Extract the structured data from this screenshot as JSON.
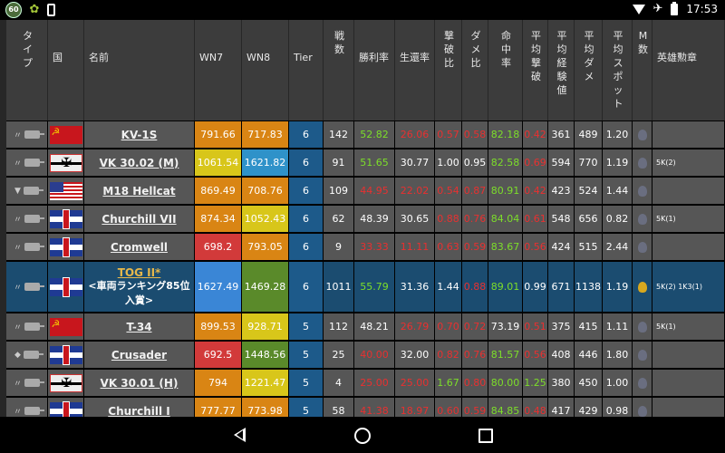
{
  "status_bar": {
    "badge": "60",
    "time": "17:53"
  },
  "header": {
    "type": "タイプ",
    "country": "国",
    "name": "名前",
    "wn7": "WN7",
    "wn8": "WN8",
    "tier": "Tier",
    "battles": "戦数",
    "winrate": "勝利率",
    "survival": "生還率",
    "kill_ratio": "撃破比",
    "damage_ratio": "ダメ比",
    "hit_rate": "命中率",
    "avg_kills": "平均撃破",
    "avg_exp": "平均経験値",
    "avg_damage": "平均ダメ",
    "avg_spot": "平均スポット",
    "m_count": "M数",
    "medals": "英雄勲章"
  },
  "rows": [
    {
      "type": "td",
      "flag": "su",
      "name": "KV-1S",
      "wn7": "791.66",
      "wn7c": "#d98514",
      "wn8": "717.83",
      "wn8c": "#d98514",
      "tier": "6",
      "battles": "142",
      "winrate": "52.82",
      "winc": "green",
      "survival": "26.06",
      "survc": "red",
      "kr": "0.57",
      "krc": "red",
      "dr": "0.58",
      "drc": "red",
      "hit": "82.18",
      "hitc": "green",
      "ak": "0.42",
      "akc": "red",
      "exp": "361",
      "dmg": "489",
      "spot": "1.20",
      "medal": "",
      "gold": false
    },
    {
      "type": "td",
      "flag": "de",
      "name": "VK 30.02 (M)",
      "wn7": "1061.54",
      "wn7c": "#d8c61a",
      "wn8": "1621.82",
      "wn8c": "#2f92c9",
      "tier": "6",
      "battles": "91",
      "winrate": "51.65",
      "winc": "green",
      "survival": "30.77",
      "survc": "white",
      "kr": "1.00",
      "krc": "white",
      "dr": "0.95",
      "drc": "white",
      "hit": "82.58",
      "hitc": "green",
      "ak": "0.69",
      "akc": "red",
      "exp": "594",
      "dmg": "770",
      "spot": "1.19",
      "medal": "5K(2)",
      "gold": false
    },
    {
      "type": "tl",
      "flag": "us",
      "name": "M18 Hellcat",
      "wn7": "869.49",
      "wn7c": "#d98514",
      "wn8": "708.76",
      "wn8c": "#d98514",
      "tier": "6",
      "battles": "109",
      "winrate": "44.95",
      "winc": "red",
      "survival": "22.02",
      "survc": "red",
      "kr": "0.54",
      "krc": "red",
      "dr": "0.87",
      "drc": "red",
      "hit": "80.91",
      "hitc": "green",
      "ak": "0.42",
      "akc": "red",
      "exp": "423",
      "dmg": "524",
      "spot": "1.44",
      "medal": "",
      "gold": false
    },
    {
      "type": "td",
      "flag": "uk",
      "name": "Churchill VII",
      "wn7": "874.34",
      "wn7c": "#d98514",
      "wn8": "1052.43",
      "wn8c": "#d8c61a",
      "tier": "6",
      "battles": "62",
      "winrate": "48.39",
      "winc": "white",
      "survival": "30.65",
      "survc": "white",
      "kr": "0.88",
      "krc": "red",
      "dr": "0.76",
      "drc": "red",
      "hit": "84.04",
      "hitc": "green",
      "ak": "0.61",
      "akc": "red",
      "exp": "548",
      "dmg": "656",
      "spot": "0.82",
      "medal": "5K(1)",
      "gold": false
    },
    {
      "type": "td",
      "flag": "uk",
      "name": "Cromwell",
      "wn7": "698.2",
      "wn7c": "#d23a3a",
      "wn8": "793.05",
      "wn8c": "#d98514",
      "tier": "6",
      "battles": "9",
      "winrate": "33.33",
      "winc": "red",
      "survival": "11.11",
      "survc": "red",
      "kr": "0.63",
      "krc": "red",
      "dr": "0.59",
      "drc": "red",
      "hit": "83.67",
      "hitc": "green",
      "ak": "0.56",
      "akc": "red",
      "exp": "424",
      "dmg": "515",
      "spot": "2.44",
      "medal": "",
      "gold": false
    },
    {
      "type": "tg",
      "flag": "uk",
      "name": "TOG II*",
      "sub1": "<車両ランキング85位",
      "sub2": "入賞>",
      "wn7": "1627.49",
      "wn7c": "#3a86d6",
      "wn8": "1469.28",
      "wn8c": "#5a8a2a",
      "tier": "6",
      "battles": "1011",
      "winrate": "55.79",
      "winc": "green",
      "survival": "31.36",
      "survc": "white",
      "kr": "1.44",
      "krc": "white",
      "dr": "0.88",
      "drc": "red",
      "hit": "89.01",
      "hitc": "green",
      "ak": "0.99",
      "akc": "white",
      "exp": "671",
      "dmg": "1138",
      "spot": "1.19",
      "medal": "5K(2) 1K3(1)",
      "gold": true,
      "highlight": true
    },
    {
      "type": "td",
      "flag": "su",
      "name": "T-34",
      "wn7": "899.53",
      "wn7c": "#d98514",
      "wn8": "928.71",
      "wn8c": "#d8c61a",
      "tier": "5",
      "battles": "112",
      "winrate": "48.21",
      "winc": "white",
      "survival": "26.79",
      "survc": "red",
      "kr": "0.70",
      "krc": "red",
      "dr": "0.72",
      "drc": "red",
      "hit": "73.19",
      "hitc": "white",
      "ak": "0.51",
      "akc": "red",
      "exp": "375",
      "dmg": "415",
      "spot": "1.11",
      "medal": "5K(1)",
      "gold": false
    },
    {
      "type": "tm",
      "flag": "uk",
      "name": "Crusader",
      "wn7": "692.5",
      "wn7c": "#d23a3a",
      "wn8": "1448.56",
      "wn8c": "#5a8a2a",
      "tier": "5",
      "battles": "25",
      "winrate": "40.00",
      "winc": "red",
      "survival": "32.00",
      "survc": "white",
      "kr": "0.82",
      "krc": "red",
      "dr": "0.76",
      "drc": "red",
      "hit": "81.57",
      "hitc": "green",
      "ak": "0.56",
      "akc": "red",
      "exp": "408",
      "dmg": "446",
      "spot": "1.80",
      "medal": "",
      "gold": false
    },
    {
      "type": "td",
      "flag": "de",
      "name": "VK 30.01 (H)",
      "wn7": "794",
      "wn7c": "#d98514",
      "wn8": "1221.47",
      "wn8c": "#d8c61a",
      "tier": "5",
      "battles": "4",
      "winrate": "25.00",
      "winc": "red",
      "survival": "25.00",
      "survc": "red",
      "kr": "1.67",
      "krc": "green",
      "dr": "0.80",
      "drc": "red",
      "hit": "80.00",
      "hitc": "green",
      "ak": "1.25",
      "akc": "green",
      "exp": "380",
      "dmg": "450",
      "spot": "1.00",
      "medal": "",
      "gold": false
    },
    {
      "type": "td",
      "flag": "uk",
      "name": "Churchill I",
      "wn7": "777.77",
      "wn7c": "#d98514",
      "wn8": "773.98",
      "wn8c": "#d98514",
      "tier": "5",
      "battles": "58",
      "winrate": "41.38",
      "winc": "red",
      "survival": "18.97",
      "survc": "red",
      "kr": "0.60",
      "krc": "red",
      "dr": "0.59",
      "drc": "red",
      "hit": "84.85",
      "hitc": "green",
      "ak": "0.48",
      "akc": "red",
      "exp": "417",
      "dmg": "429",
      "spot": "0.98",
      "medal": "",
      "gold": false
    }
  ]
}
